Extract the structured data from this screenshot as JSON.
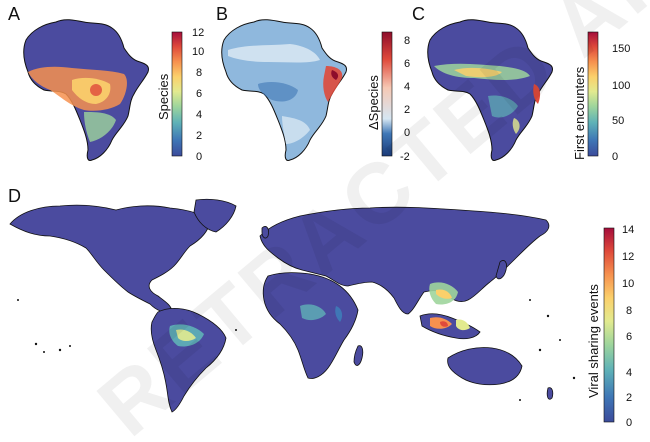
{
  "figure": {
    "panels": [
      {
        "letter": "A",
        "colorbar_title": "Species",
        "ticks": [
          "0",
          "2",
          "4",
          "6",
          "8",
          "10",
          "12"
        ]
      },
      {
        "letter": "B",
        "colorbar_title": "ΔSpecies",
        "ticks": [
          "-2",
          "0",
          "2",
          "4",
          "6",
          "8"
        ]
      },
      {
        "letter": "C",
        "colorbar_title": "First encounters",
        "ticks": [
          "0",
          "50",
          "100",
          "150"
        ]
      },
      {
        "letter": "D",
        "colorbar_title": "Viral sharing events",
        "ticks": [
          "0",
          "2",
          "4",
          "6",
          "8",
          "10",
          "12",
          "14"
        ]
      }
    ],
    "watermark": "RETRACTED ARTICLE"
  },
  "colors": {
    "scale": [
      "#3b4b9b",
      "#3f77b6",
      "#5fb2b7",
      "#9ed59c",
      "#e2ea8f",
      "#fbd06b",
      "#f6914f",
      "#df4a3b",
      "#a50d3b"
    ],
    "ocean": "#ffffff",
    "land_base": "#4b4b9f",
    "panel_b_base": "#8fb8dd"
  }
}
